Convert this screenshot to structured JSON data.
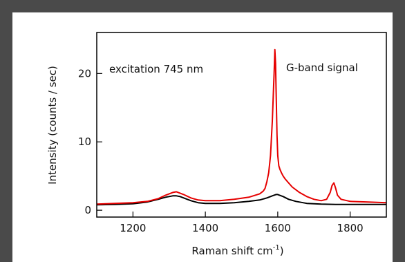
{
  "chart_data": {
    "type": "line",
    "title": "",
    "xlabel": "Raman shift cm",
    "xlabel_superscript": "-1",
    "xlabel_suffix": ")",
    "ylabel": "Intensity (counts / sec)",
    "xlim": [
      1100,
      1900
    ],
    "ylim": [
      -1,
      26
    ],
    "xticks": [
      1200,
      1400,
      1600,
      1800
    ],
    "yticks": [
      0,
      10,
      20
    ],
    "annotations": [
      {
        "text": "excitation 745 nm",
        "x": 1140,
        "y": 21
      },
      {
        "text": "G-band signal",
        "x": 1665,
        "y": 21
      }
    ],
    "series": [
      {
        "color": "#e60000",
        "x": [
          1100,
          1150,
          1200,
          1240,
          1270,
          1290,
          1310,
          1320,
          1330,
          1340,
          1360,
          1380,
          1400,
          1440,
          1480,
          1520,
          1550,
          1560,
          1565,
          1570,
          1575,
          1580,
          1585,
          1590,
          1592,
          1594,
          1596,
          1598,
          1600,
          1603,
          1606,
          1610,
          1615,
          1620,
          1630,
          1640,
          1660,
          1680,
          1700,
          1720,
          1735,
          1745,
          1750,
          1755,
          1760,
          1765,
          1775,
          1800,
          1850,
          1900
        ],
        "y": [
          0.9,
          1.0,
          1.1,
          1.3,
          1.7,
          2.2,
          2.6,
          2.7,
          2.5,
          2.3,
          1.8,
          1.5,
          1.4,
          1.4,
          1.6,
          1.9,
          2.4,
          2.8,
          3.2,
          4.2,
          5.5,
          8.0,
          13.0,
          20.0,
          23.5,
          21.5,
          16.0,
          11.0,
          8.0,
          6.5,
          6.0,
          5.5,
          5.0,
          4.6,
          4.0,
          3.4,
          2.6,
          2.0,
          1.6,
          1.4,
          1.6,
          2.6,
          3.6,
          4.0,
          3.2,
          2.2,
          1.6,
          1.3,
          1.2,
          1.1
        ]
      },
      {
        "color": "#000000",
        "x": [
          1100,
          1150,
          1200,
          1240,
          1270,
          1290,
          1310,
          1320,
          1330,
          1340,
          1360,
          1380,
          1400,
          1440,
          1480,
          1520,
          1550,
          1570,
          1585,
          1595,
          1600,
          1605,
          1615,
          1630,
          1650,
          1680,
          1720,
          1760,
          1800,
          1850,
          1900
        ],
        "y": [
          0.8,
          0.85,
          0.95,
          1.2,
          1.6,
          1.9,
          2.1,
          2.1,
          2.0,
          1.8,
          1.4,
          1.1,
          1.0,
          1.0,
          1.1,
          1.3,
          1.5,
          1.8,
          2.1,
          2.3,
          2.3,
          2.2,
          2.0,
          1.6,
          1.3,
          1.0,
          0.9,
          0.85,
          0.85,
          0.85,
          0.85
        ]
      }
    ]
  }
}
